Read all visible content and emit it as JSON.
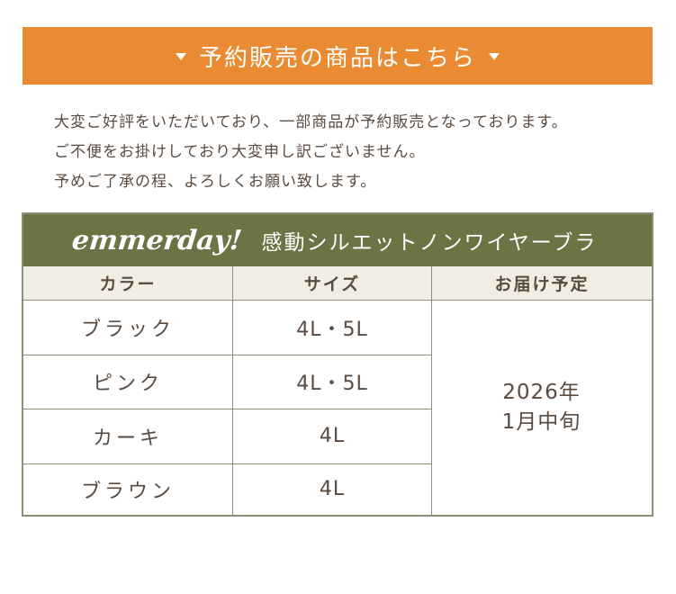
{
  "banner": {
    "title": "予約販売の商品はこちら",
    "arrow_icon": "triangle-down-icon",
    "color": "#ea8b33"
  },
  "notice": {
    "lines": [
      "大変ご好評をいただいており、一部商品が予約販売となっております。",
      "ご不便をお掛けしており大変申し訳ございません。",
      "予めご了承の程、よろしくお願い致します。"
    ]
  },
  "table": {
    "brand": "emmerday!",
    "product": "感動シルエットノンワイヤーブラ",
    "header_color": "#6b7445",
    "columns": [
      "カラー",
      "サイズ",
      "お届け予定"
    ],
    "rows": [
      {
        "color": "ブラック",
        "size": "4L・5L"
      },
      {
        "color": "ピンク",
        "size": "4L・5L"
      },
      {
        "color": "カーキ",
        "size": "4L"
      },
      {
        "color": "ブラウン",
        "size": "4L"
      }
    ],
    "delivery_year": "2026年",
    "delivery_month": "1月中旬"
  }
}
